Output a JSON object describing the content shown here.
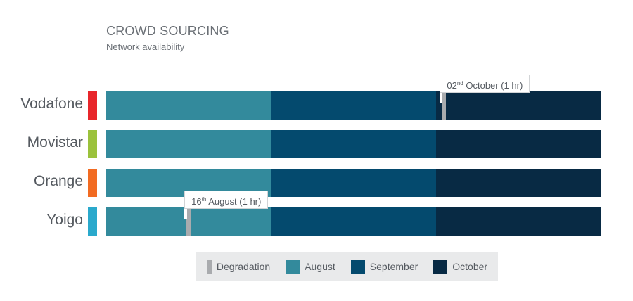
{
  "chart_data": {
    "type": "bar",
    "title": "CROWD SOURCING",
    "subtitle": "Network availability",
    "operators": [
      {
        "name": "Vodafone",
        "color": "#e8262b"
      },
      {
        "name": "Movistar",
        "color": "#9bc23c"
      },
      {
        "name": "Orange",
        "color": "#f26b22"
      },
      {
        "name": "Yoigo",
        "color": "#2aa9cc"
      }
    ],
    "months": [
      {
        "name": "August",
        "days": 31,
        "color": "#338a9c"
      },
      {
        "name": "September",
        "days": 30,
        "color": "#044a6e"
      },
      {
        "name": "October",
        "days": 30,
        "color": "#082a44"
      }
    ],
    "degradation_color": "#a9abae",
    "events": [
      {
        "operator": "Vodafone",
        "month": "October",
        "day": 2,
        "day_label": "02",
        "suffix": "nd",
        "text": "October (1 hr)",
        "duration_hr": 1
      },
      {
        "operator": "Yoigo",
        "month": "August",
        "day": 16,
        "day_label": "16",
        "suffix": "th",
        "text": "August (1 hr)",
        "duration_hr": 1
      }
    ],
    "legend": [
      "Degradation",
      "August",
      "September",
      "October"
    ]
  }
}
